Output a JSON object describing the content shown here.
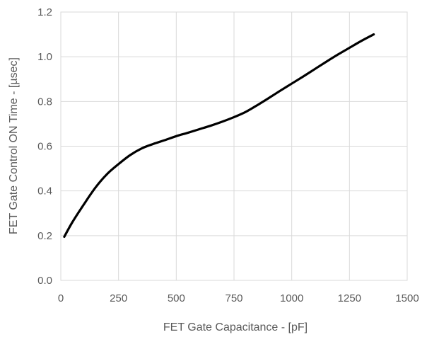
{
  "chart_data": {
    "type": "line",
    "title": "",
    "xlabel": "FET Gate Capacitance - [pF]",
    "ylabel": "FET Gate Control ON Time - [µsec]",
    "xlim": [
      0,
      1500
    ],
    "ylim": [
      0,
      1.2
    ],
    "xticks": [
      0,
      250,
      500,
      750,
      1000,
      1250,
      1500
    ],
    "yticks": [
      0.0,
      0.2,
      0.4,
      0.6,
      0.8,
      1.0,
      1.2
    ],
    "xtick_labels": [
      "0",
      "250",
      "500",
      "750",
      "1000",
      "1250",
      "1500"
    ],
    "ytick_labels": [
      "0.0",
      "0.2",
      "0.4",
      "0.6",
      "0.8",
      "1.0",
      "1.2"
    ],
    "grid": true,
    "legend": "none",
    "series": [
      {
        "color": "#000000",
        "x": [
          15,
          50,
          100,
          150,
          200,
          250,
          300,
          350,
          400,
          450,
          500,
          550,
          600,
          650,
          700,
          750,
          800,
          850,
          900,
          950,
          1000,
          1050,
          1100,
          1150,
          1200,
          1250,
          1300,
          1355
        ],
        "y": [
          0.195,
          0.26,
          0.34,
          0.415,
          0.475,
          0.52,
          0.56,
          0.59,
          0.61,
          0.627,
          0.645,
          0.66,
          0.676,
          0.692,
          0.71,
          0.73,
          0.753,
          0.783,
          0.815,
          0.848,
          0.88,
          0.912,
          0.945,
          0.978,
          1.01,
          1.04,
          1.07,
          1.1
        ]
      }
    ]
  }
}
